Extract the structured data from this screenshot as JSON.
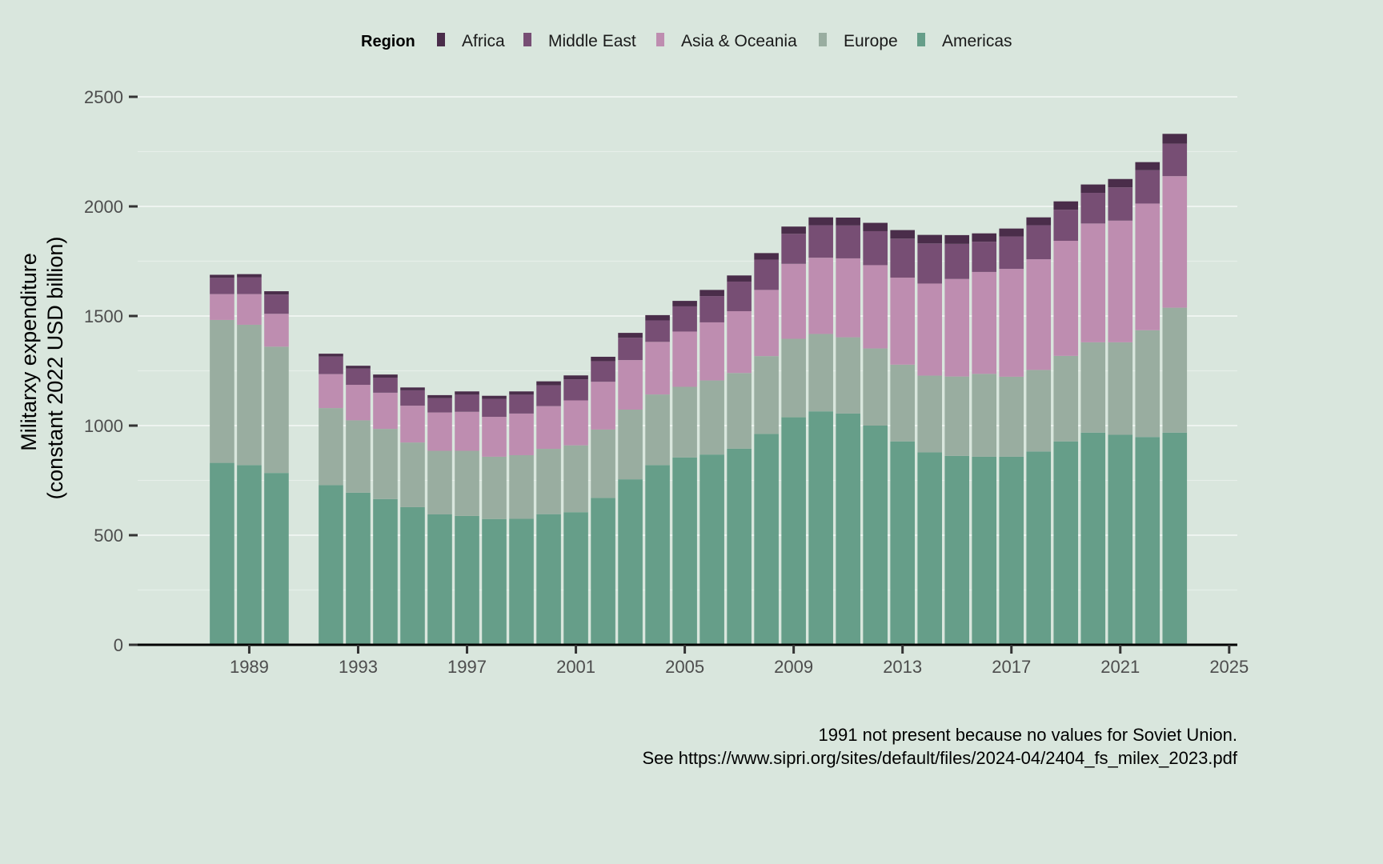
{
  "chart_data": {
    "type": "bar",
    "stacked": true,
    "title": "",
    "xlabel": "",
    "ylabel_line1": "Militarxy expenditure",
    "ylabel_line2": "(constant 2022 USD billion)",
    "legend_title": "Region",
    "legend_position": "top",
    "ylim": [
      0,
      2500
    ],
    "xlim": [
      1984.9,
      2025.3
    ],
    "y_ticks": [
      0,
      500,
      1000,
      1500,
      2000,
      2500
    ],
    "x_ticks": [
      1989,
      1993,
      1997,
      2001,
      2005,
      2009,
      2013,
      2017,
      2021,
      2025
    ],
    "x_tick_labels": [
      "1989",
      "1993",
      "1997",
      "2001",
      "2005",
      "2009",
      "2013",
      "2017",
      "2021",
      "2025"
    ],
    "y_tick_labels": [
      "0",
      "500",
      "1000",
      "1500",
      "2000",
      "2500"
    ],
    "x": [
      1988,
      1989,
      1990,
      1992,
      1993,
      1994,
      1995,
      1996,
      1997,
      1998,
      1999,
      2000,
      2001,
      2002,
      2003,
      2004,
      2005,
      2006,
      2007,
      2008,
      2009,
      2010,
      2011,
      2012,
      2013,
      2014,
      2015,
      2016,
      2017,
      2018,
      2019,
      2020,
      2021,
      2022,
      2023
    ],
    "series": [
      {
        "name": "Americas",
        "color": "#669e89",
        "values": [
          830,
          820,
          784,
          728,
          694,
          665,
          628,
          595,
          588,
          574,
          575,
          596,
          605,
          670,
          755,
          820,
          855,
          868,
          895,
          962,
          1038,
          1065,
          1055,
          1000,
          928,
          878,
          862,
          858,
          858,
          882,
          928,
          968,
          958,
          948,
          968
        ]
      },
      {
        "name": "Europe",
        "color": "#99ada0",
        "values": [
          652,
          640,
          576,
          352,
          330,
          320,
          295,
          290,
          297,
          284,
          290,
          298,
          305,
          312,
          318,
          322,
          322,
          338,
          345,
          355,
          358,
          353,
          348,
          352,
          350,
          350,
          362,
          378,
          365,
          372,
          390,
          412,
          422,
          487,
          570
        ]
      },
      {
        "name": "Asia & Oceania",
        "color": "#be8db0",
        "values": [
          118,
          140,
          150,
          155,
          162,
          165,
          168,
          175,
          178,
          182,
          190,
          195,
          205,
          218,
          226,
          240,
          252,
          265,
          282,
          302,
          342,
          348,
          360,
          380,
          397,
          420,
          445,
          465,
          492,
          505,
          525,
          542,
          555,
          578,
          600
        ]
      },
      {
        "name": "Middle East",
        "color": "#774e74",
        "values": [
          74,
          77,
          88,
          80,
          74,
          69,
          70,
          65,
          78,
          82,
          86,
          95,
          96,
          94,
          102,
          98,
          115,
          120,
          135,
          138,
          137,
          148,
          150,
          155,
          178,
          183,
          160,
          138,
          148,
          155,
          142,
          140,
          152,
          152,
          148
        ]
      },
      {
        "name": "Africa",
        "color": "#4a2d4a",
        "values": [
          14,
          14,
          15,
          13,
          13,
          14,
          13,
          14,
          15,
          14,
          15,
          18,
          18,
          20,
          22,
          24,
          25,
          28,
          28,
          30,
          33,
          36,
          36,
          38,
          39,
          39,
          40,
          38,
          36,
          36,
          38,
          38,
          38,
          37,
          45
        ]
      }
    ],
    "legend_order": [
      "Africa",
      "Middle East",
      "Asia & Oceania",
      "Europe",
      "Americas"
    ],
    "caption_line1": "1991 not present because no values for Soviet Union.",
    "caption_line2": "See https://www.sipri.org/sites/default/files/2024-04/2404_fs_milex_2023.pdf"
  }
}
